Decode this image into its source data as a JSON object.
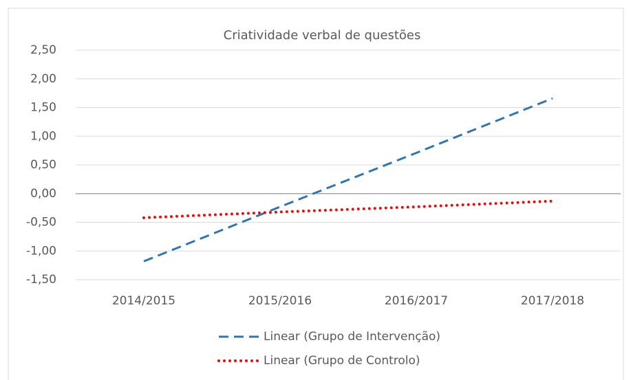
{
  "chart_data": {
    "type": "line",
    "title": "Criatividade  verbal de questões",
    "categories": [
      "2014/2015",
      "2015/2016",
      "2016/2017",
      "2017/2018"
    ],
    "series": [
      {
        "name": "Linear (Grupo de Intervenção)",
        "color": "#2e75b6",
        "dash": "dashed",
        "values": [
          -1.18,
          -0.23,
          0.71,
          1.66
        ]
      },
      {
        "name": "Linear (Grupo de Controlo)",
        "color": "#ff0000",
        "dash": "dotted",
        "values": [
          -0.42,
          -0.32,
          -0.23,
          -0.13
        ]
      }
    ],
    "ylim": [
      -1.5,
      2.5
    ],
    "yticks": [
      {
        "value": 2.5,
        "label": "2,50"
      },
      {
        "value": 2.0,
        "label": "2,00"
      },
      {
        "value": 1.5,
        "label": "1,50"
      },
      {
        "value": 1.0,
        "label": "1,00"
      },
      {
        "value": 0.5,
        "label": "0,50"
      },
      {
        "value": 0,
        "label": "0,00"
      },
      {
        "value": -0.5,
        "label": "-0,50"
      },
      {
        "value": -1.0,
        "label": "-1,00"
      },
      {
        "value": -1.5,
        "label": "-1,50"
      }
    ],
    "grid": true,
    "legend": "bottom"
  }
}
